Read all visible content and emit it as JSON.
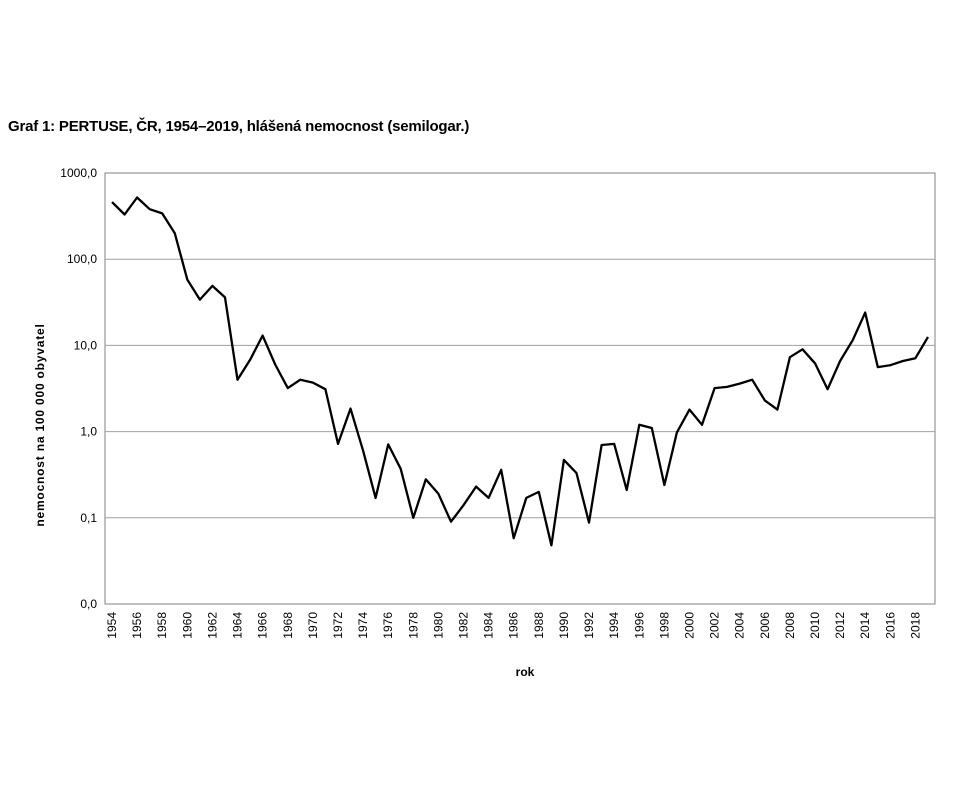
{
  "chart_data": {
    "type": "line",
    "title": "Graf 1: PERTUSE, ČR, 1954–2019, hlášená nemocnost (semilogar.)",
    "xlabel": "rok",
    "ylabel": "nemocnost na 100 000 obyvatel",
    "yscale": "log",
    "ylim": [
      0.01,
      1000
    ],
    "yticks": [
      0.01,
      0.1,
      1,
      10,
      100,
      1000
    ],
    "ytick_labels": [
      "0,0",
      "0,1",
      "1,0",
      "10,0",
      "100,0",
      "1000,0"
    ],
    "xlim": [
      1954,
      2019
    ],
    "xticks": [
      1954,
      1956,
      1958,
      1960,
      1962,
      1964,
      1966,
      1968,
      1970,
      1972,
      1974,
      1976,
      1978,
      1980,
      1982,
      1984,
      1986,
      1988,
      1990,
      1992,
      1994,
      1996,
      1998,
      2000,
      2002,
      2004,
      2006,
      2008,
      2010,
      2012,
      2014,
      2016,
      2018
    ],
    "grid": "horizontal",
    "series": [
      {
        "color": "#000000",
        "x": [
          1954,
          1955,
          1956,
          1957,
          1958,
          1959,
          1960,
          1961,
          1962,
          1963,
          1964,
          1965,
          1966,
          1967,
          1968,
          1969,
          1970,
          1971,
          1972,
          1973,
          1974,
          1975,
          1976,
          1977,
          1978,
          1979,
          1980,
          1981,
          1982,
          1983,
          1984,
          1985,
          1986,
          1987,
          1988,
          1989,
          1990,
          1991,
          1992,
          1993,
          1994,
          1995,
          1996,
          1997,
          1998,
          1999,
          2000,
          2001,
          2002,
          2003,
          2004,
          2005,
          2006,
          2007,
          2008,
          2009,
          2010,
          2011,
          2012,
          2013,
          2014,
          2015,
          2016,
          2017,
          2018,
          2019
        ],
        "values": [
          460,
          330,
          520,
          380,
          340,
          200,
          58,
          34,
          49,
          36,
          4,
          6.8,
          13,
          6,
          3.2,
          4,
          3.7,
          3.1,
          0.72,
          1.85,
          0.6,
          0.17,
          0.71,
          0.37,
          0.1,
          0.28,
          0.19,
          0.09,
          0.14,
          0.23,
          0.17,
          0.36,
          0.058,
          0.17,
          0.2,
          0.048,
          0.47,
          0.33,
          0.088,
          0.7,
          0.72,
          0.21,
          1.2,
          1.1,
          0.24,
          0.98,
          1.8,
          1.2,
          3.2,
          3.3,
          3.6,
          4,
          2.3,
          1.8,
          7.3,
          9,
          6.2,
          3.1,
          6.6,
          11.5,
          24,
          5.6,
          5.9,
          6.6,
          7.1,
          12.5
        ]
      }
    ]
  }
}
